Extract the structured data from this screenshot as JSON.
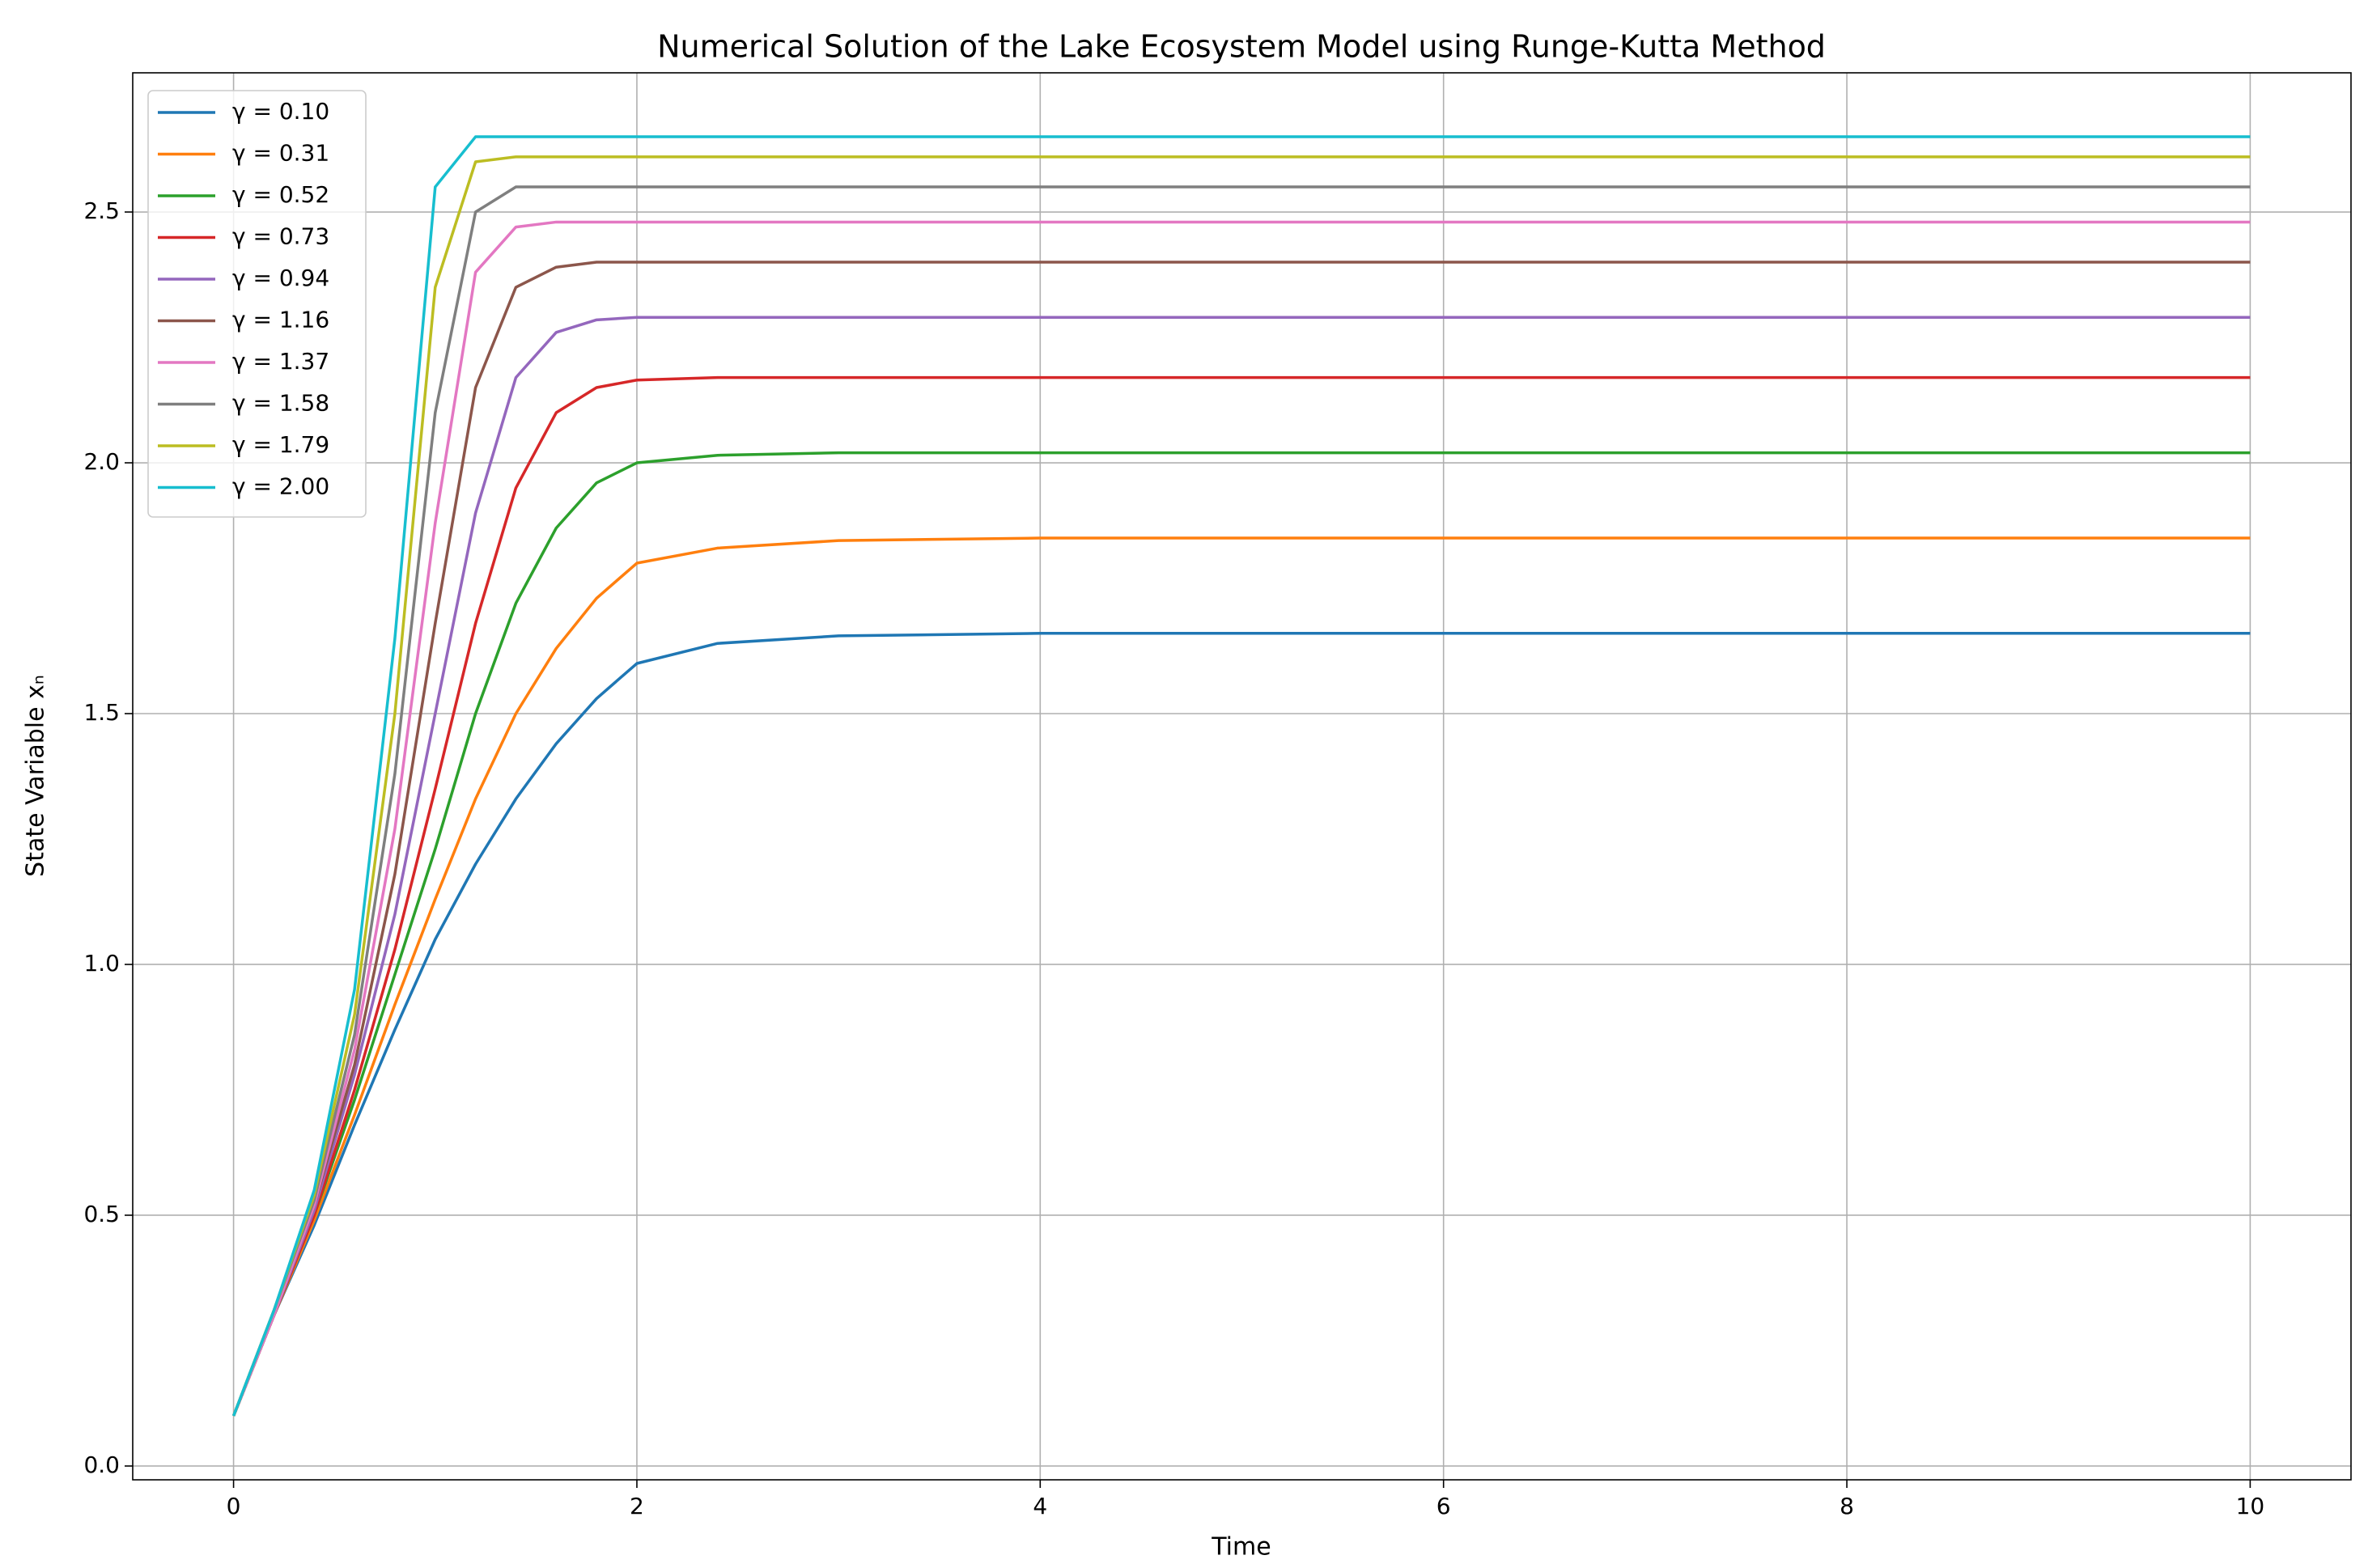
{
  "chart_data": {
    "type": "line",
    "title": "Numerical Solution of the Lake Ecosystem Model using Runge-Kutta Method",
    "x_label": "Time",
    "y_label": "State Variable xₙ",
    "x": [
      0,
      0.2,
      0.4,
      0.6,
      0.8,
      1.0,
      1.2,
      1.4,
      1.6,
      1.8,
      2.0,
      2.4,
      3,
      4,
      6,
      8,
      10
    ],
    "series": [
      {
        "name": "γ = 0.10",
        "color": "#1f77b4",
        "values": [
          0.1,
          0.3,
          0.48,
          0.68,
          0.87,
          1.05,
          1.2,
          1.33,
          1.44,
          1.53,
          1.6,
          1.64,
          1.655,
          1.66,
          1.66,
          1.66,
          1.66
        ]
      },
      {
        "name": "γ = 0.31",
        "color": "#ff7f0e",
        "values": [
          0.1,
          0.3,
          0.49,
          0.7,
          0.92,
          1.13,
          1.33,
          1.5,
          1.63,
          1.73,
          1.8,
          1.83,
          1.845,
          1.85,
          1.85,
          1.85,
          1.85
        ]
      },
      {
        "name": "γ = 0.52",
        "color": "#2ca02c",
        "values": [
          0.1,
          0.3,
          0.5,
          0.73,
          0.98,
          1.23,
          1.5,
          1.72,
          1.87,
          1.96,
          2.0,
          2.015,
          2.02,
          2.02,
          2.02,
          2.02,
          2.02
        ]
      },
      {
        "name": "γ = 0.73",
        "color": "#d62728",
        "values": [
          0.1,
          0.3,
          0.5,
          0.75,
          1.03,
          1.35,
          1.68,
          1.95,
          2.1,
          2.15,
          2.165,
          2.17,
          2.17,
          2.17,
          2.17,
          2.17,
          2.17
        ]
      },
      {
        "name": "γ = 0.94",
        "color": "#9467bd",
        "values": [
          0.1,
          0.3,
          0.51,
          0.78,
          1.1,
          1.5,
          1.9,
          2.17,
          2.26,
          2.285,
          2.29,
          2.29,
          2.29,
          2.29,
          2.29,
          2.29,
          2.29
        ]
      },
      {
        "name": "γ = 1.16",
        "color": "#8c564b",
        "values": [
          0.1,
          0.3,
          0.52,
          0.8,
          1.18,
          1.68,
          2.15,
          2.35,
          2.39,
          2.4,
          2.4,
          2.4,
          2.4,
          2.4,
          2.4,
          2.4,
          2.4
        ]
      },
      {
        "name": "γ = 1.37",
        "color": "#e377c2",
        "values": [
          0.1,
          0.3,
          0.52,
          0.83,
          1.27,
          1.88,
          2.38,
          2.47,
          2.48,
          2.48,
          2.48,
          2.48,
          2.48,
          2.48,
          2.48,
          2.48,
          2.48
        ]
      },
      {
        "name": "γ = 1.58",
        "color": "#7f7f7f",
        "values": [
          0.1,
          0.31,
          0.53,
          0.86,
          1.38,
          2.1,
          2.5,
          2.55,
          2.55,
          2.55,
          2.55,
          2.55,
          2.55,
          2.55,
          2.55,
          2.55,
          2.55
        ]
      },
      {
        "name": "γ = 1.79",
        "color": "#bcbd22",
        "values": [
          0.1,
          0.31,
          0.54,
          0.9,
          1.5,
          2.35,
          2.6,
          2.61,
          2.61,
          2.61,
          2.61,
          2.61,
          2.61,
          2.61,
          2.61,
          2.61,
          2.61
        ]
      },
      {
        "name": "γ = 2.00",
        "color": "#17becf",
        "values": [
          0.1,
          0.31,
          0.55,
          0.95,
          1.65,
          2.55,
          2.65,
          2.65,
          2.65,
          2.65,
          2.65,
          2.65,
          2.65,
          2.65,
          2.65,
          2.65,
          2.65
        ]
      }
    ],
    "xlim": [
      -0.5,
      10.5
    ],
    "ylim": [
      -0.0275,
      2.7775
    ],
    "xticks": [
      0,
      2,
      4,
      6,
      8,
      10
    ],
    "yticks": [
      {
        "value": 0,
        "label": "0.0"
      },
      {
        "value": 0.5,
        "label": "0.5"
      },
      {
        "value": 1,
        "label": "1.0"
      },
      {
        "value": 1.5,
        "label": "1.5"
      },
      {
        "value": 2,
        "label": "2.0"
      },
      {
        "value": 2.5,
        "label": "2.5"
      }
    ],
    "grid": true,
    "legend": "upper left"
  }
}
